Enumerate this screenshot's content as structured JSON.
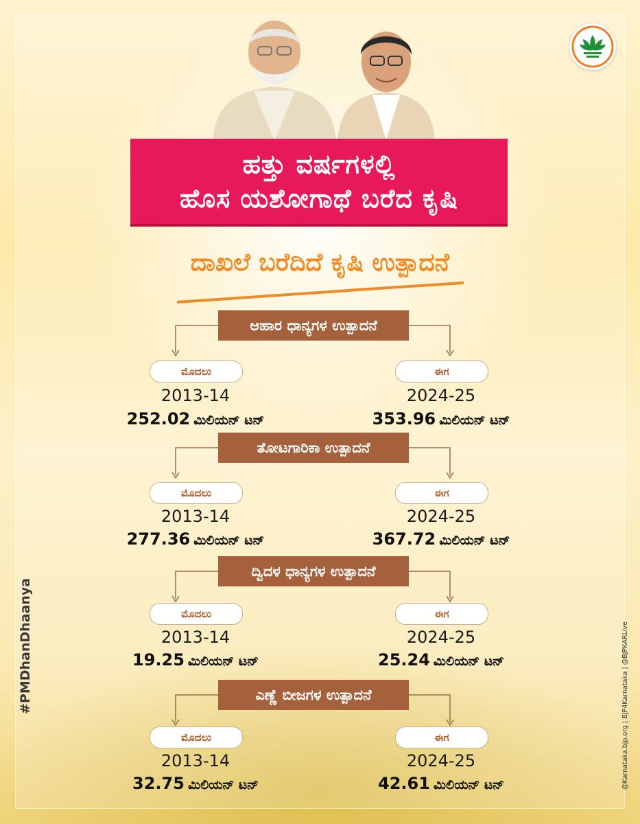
{
  "title": {
    "line1": "ಹತ್ತು ವರ್ಷಗಳಲ್ಲಿ",
    "line2": "ಹೊಸ ಯಶೋಗಾಥೆ ಬರೆದ ಕೃಷಿ"
  },
  "subtitle": "ದಾಖಲೆ ಬರೆದಿದೆ ಕೃಷಿ ಉತ್ಪಾದನೆ",
  "labels": {
    "before": "ಮೊದಲು",
    "now": "ಈಗ",
    "year_before": "2013-14",
    "year_now": "2024-25",
    "unit": "ಮಿಲಿಯನ್ ಟನ್"
  },
  "sections": [
    {
      "heading": "ಆಹಾರ ಧಾನ್ಯಗಳ ಉತ್ಪಾದನೆ",
      "before_value": "252.02",
      "now_value": "353.96"
    },
    {
      "heading": "ತೋಟಗಾರಿಕಾ ಉತ್ಪಾದನೆ",
      "before_value": "277.36",
      "now_value": "367.72"
    },
    {
      "heading": "ದ್ವಿದಳ ಧಾನ್ಯಗಳ ಉತ್ಪಾದನೆ",
      "before_value": "19.25",
      "now_value": "25.24"
    },
    {
      "heading": "ಎಣ್ಣೆ ಬೀಜಗಳ ಉತ್ಪಾದನೆ",
      "before_value": "32.75",
      "now_value": "42.61"
    }
  ],
  "hashtag": "#PMDhanDhaanya",
  "social_handles": "@Karnataka.bjp.org  |  BJP4Karnataka  |  @BJPKARLive",
  "colors": {
    "title_bg": "#e8195a",
    "subtitle": "#f08a24",
    "section_bg": "#a5613b",
    "pill_text": "#b35a25",
    "saffron": "#f47c20",
    "green": "#1f8f3a"
  }
}
